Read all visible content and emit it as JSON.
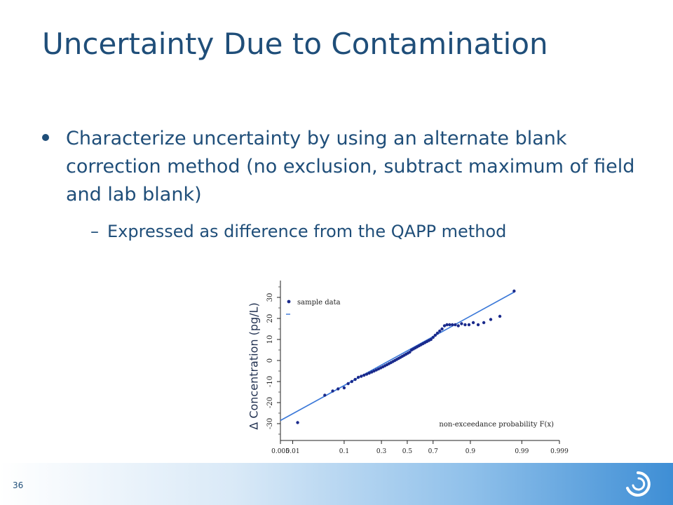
{
  "slide": {
    "title": "Uncertainty Due to Contamination",
    "bullet": "Characterize uncertainty by using an alternate blank correction method (no exclusion, subtract maximum of field and lab blank)",
    "sub_bullet_marker": "–",
    "sub_bullet": "Expressed as difference from the QAPP method",
    "page_number": "36"
  },
  "colors": {
    "title": "#1f4e79",
    "points": "#1a2a8c",
    "fit_line": "#3a78d8",
    "footer_end": "#3e8ed5"
  },
  "icons": {
    "logo": "swirl-logo-icon"
  },
  "chart_data": {
    "type": "scatter",
    "ylabel": "Δ Concentration (pg/L)",
    "xlabel": "non-exceedance probability F(x)",
    "legend": "sample data",
    "legend_position": "top-left",
    "x_scale": "normal-probability",
    "x_ticks": [
      "0.005",
      "0.01",
      "0.1",
      "0.3",
      "0.5",
      "0.7",
      "0.9",
      "0.99",
      "0.999"
    ],
    "x_tick_values": [
      0.005,
      0.01,
      0.1,
      0.3,
      0.5,
      0.7,
      0.9,
      0.99,
      0.999
    ],
    "y_ticks": [
      -30,
      -20,
      -10,
      0,
      10,
      20,
      30
    ],
    "ylim": [
      -38,
      38
    ],
    "grid": false,
    "fit_line": {
      "x": [
        0.005,
        0.985
      ],
      "y": [
        -28.5,
        32.5
      ]
    },
    "series": [
      {
        "x": [
          0.013,
          0.047,
          0.065,
          0.08,
          0.1,
          0.115,
          0.13,
          0.145,
          0.16,
          0.175,
          0.19,
          0.205,
          0.22,
          0.235,
          0.25,
          0.265,
          0.28,
          0.295,
          0.31,
          0.325,
          0.34,
          0.355,
          0.37,
          0.385,
          0.4,
          0.415,
          0.43,
          0.445,
          0.46,
          0.475,
          0.49,
          0.505,
          0.52,
          0.535,
          0.55,
          0.565,
          0.58,
          0.595,
          0.61,
          0.625,
          0.64,
          0.655,
          0.67,
          0.685,
          0.7,
          0.715,
          0.73,
          0.745,
          0.76,
          0.775,
          0.79,
          0.805,
          0.82,
          0.835,
          0.85,
          0.865,
          0.88,
          0.895,
          0.91,
          0.925,
          0.94,
          0.955,
          0.97,
          0.985
        ],
        "y": [
          -29.5,
          -16.5,
          -14.5,
          -13.5,
          -13,
          -11,
          -10,
          -9,
          -8,
          -7.5,
          -7,
          -6.5,
          -6,
          -5.5,
          -5,
          -4.5,
          -4,
          -3.5,
          -3,
          -2.5,
          -2,
          -1.5,
          -1,
          -0.5,
          0,
          0.5,
          1,
          1.5,
          2,
          2.5,
          3,
          3.5,
          4,
          5,
          5.5,
          6,
          6.5,
          7,
          7.5,
          8,
          8.5,
          9,
          9.5,
          10,
          11,
          12,
          13,
          14,
          15,
          16.5,
          17,
          17,
          17,
          17,
          16.5,
          17.5,
          17,
          17,
          18,
          17,
          18,
          19.5,
          21,
          33
        ]
      }
    ]
  }
}
